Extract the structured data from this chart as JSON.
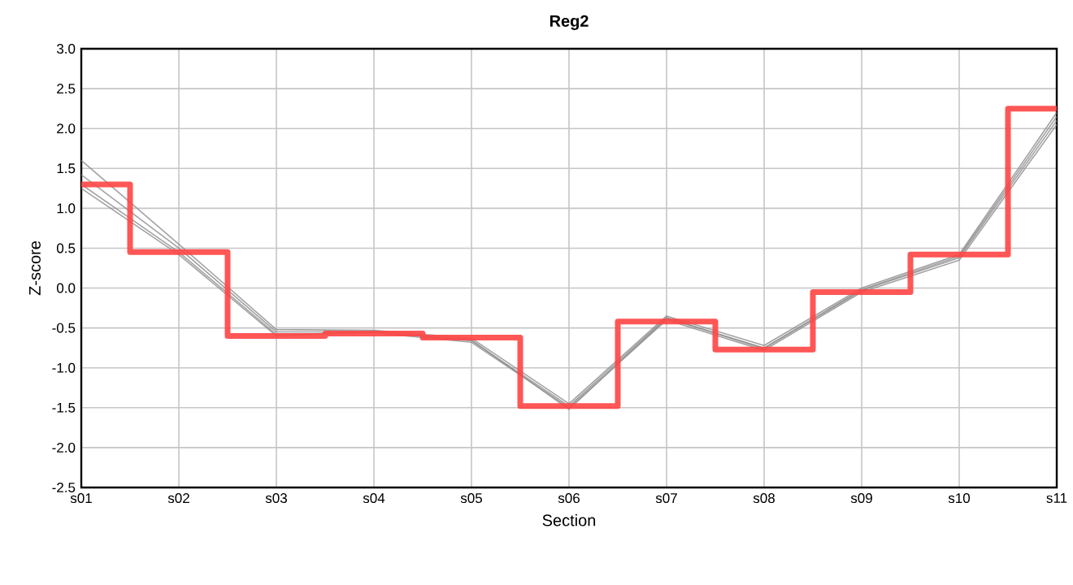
{
  "chart_data": {
    "type": "line",
    "title": "Reg2",
    "xlabel": "Section",
    "ylabel": "Z-score",
    "categories": [
      "s01",
      "s02",
      "s03",
      "s04",
      "s05",
      "s06",
      "s07",
      "s08",
      "s09",
      "s10",
      "s11"
    ],
    "series": [
      {
        "color": "#8c8c8c",
        "values": [
          1.6,
          0.55,
          -0.52,
          -0.53,
          -0.63,
          -1.45,
          -0.35,
          -0.72,
          0.0,
          0.42,
          2.2
        ]
      },
      {
        "color": "#8c8c8c",
        "values": [
          1.42,
          0.5,
          -0.55,
          -0.55,
          -0.65,
          -1.52,
          -0.38,
          -0.75,
          -0.02,
          0.4,
          2.15
        ]
      },
      {
        "color": "#8c8c8c",
        "values": [
          1.3,
          0.45,
          -0.58,
          -0.56,
          -0.68,
          -1.5,
          -0.4,
          -0.78,
          -0.05,
          0.35,
          2.05
        ]
      },
      {
        "color": "#8c8c8c",
        "values": [
          1.25,
          0.42,
          -0.6,
          -0.55,
          -0.66,
          -1.48,
          -0.37,
          -0.76,
          -0.03,
          0.38,
          2.1
        ]
      },
      {
        "type": "step",
        "color": "#ff4444",
        "values": [
          1.3,
          0.45,
          -0.6,
          -0.57,
          -0.62,
          -1.48,
          -0.42,
          -0.77,
          -0.05,
          0.42,
          2.25
        ]
      }
    ],
    "ylim": [
      -2.5,
      3.0
    ],
    "yticks": [
      -2.5,
      {
        "value": -2,
        "label": "-2.0"
      },
      -1.5,
      {
        "value": -1,
        "label": "-1.0"
      },
      -0.5,
      {
        "value": 0,
        "label": "0.0"
      },
      0.5,
      {
        "value": 1,
        "label": "1.0"
      },
      1.5,
      {
        "value": 2,
        "label": "2.0"
      },
      2.5,
      {
        "value": 3,
        "label": "3.0"
      }
    ],
    "grid": true,
    "marker": "none"
  }
}
